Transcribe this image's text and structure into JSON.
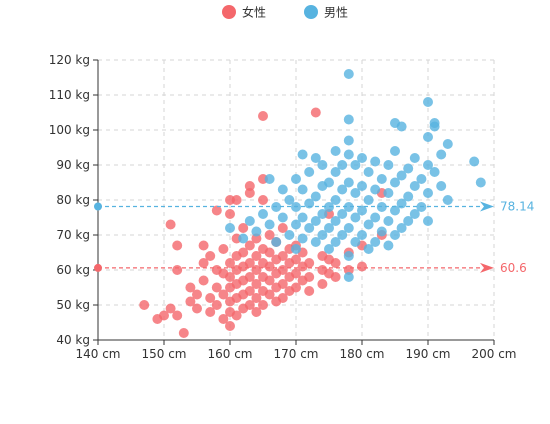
{
  "chart_data": {
    "type": "scatter",
    "title": "",
    "xlabel": "",
    "ylabel": "",
    "xlim": [
      140,
      200
    ],
    "ylim": [
      40,
      120
    ],
    "x_ticks": [
      140,
      150,
      160,
      170,
      180,
      190,
      200
    ],
    "x_tick_labels": [
      "140 cm",
      "150 cm",
      "160 cm",
      "170 cm",
      "180 cm",
      "190 cm",
      "200 cm"
    ],
    "y_ticks": [
      40,
      50,
      60,
      70,
      80,
      90,
      100,
      110,
      120
    ],
    "y_tick_labels": [
      "40 kg",
      "50 kg",
      "60 kg",
      "70 kg",
      "80 kg",
      "90 kg",
      "100 kg",
      "110 kg",
      "120 kg"
    ],
    "grid": "dashed",
    "legend_position": "top-center",
    "series": [
      {
        "name": "女性",
        "color": "#f4676b",
        "mean_line": {
          "value": 60.6,
          "label": "60.6"
        },
        "points": [
          [
            147,
            50
          ],
          [
            149,
            46
          ],
          [
            150,
            47
          ],
          [
            151,
            49
          ],
          [
            152,
            47
          ],
          [
            152,
            60
          ],
          [
            152,
            67
          ],
          [
            151,
            73
          ],
          [
            153,
            42
          ],
          [
            154,
            51
          ],
          [
            154,
            55
          ],
          [
            155,
            49
          ],
          [
            155,
            53
          ],
          [
            156,
            57
          ],
          [
            156,
            62
          ],
          [
            156,
            67
          ],
          [
            157,
            48
          ],
          [
            157,
            52
          ],
          [
            157,
            64
          ],
          [
            158,
            50
          ],
          [
            158,
            55
          ],
          [
            158,
            60
          ],
          [
            158,
            77
          ],
          [
            159,
            46
          ],
          [
            159,
            53
          ],
          [
            159,
            59
          ],
          [
            159,
            66
          ],
          [
            160,
            44
          ],
          [
            160,
            48
          ],
          [
            160,
            51
          ],
          [
            160,
            55
          ],
          [
            160,
            58
          ],
          [
            160,
            62
          ],
          [
            160,
            76
          ],
          [
            160,
            80
          ],
          [
            161,
            47
          ],
          [
            161,
            52
          ],
          [
            161,
            56
          ],
          [
            161,
            60
          ],
          [
            161,
            64
          ],
          [
            161,
            69
          ],
          [
            161,
            80
          ],
          [
            162,
            49
          ],
          [
            162,
            53
          ],
          [
            162,
            57
          ],
          [
            162,
            61
          ],
          [
            162,
            65
          ],
          [
            162,
            72
          ],
          [
            163,
            50
          ],
          [
            163,
            54
          ],
          [
            163,
            58
          ],
          [
            163,
            62
          ],
          [
            163,
            67
          ],
          [
            163,
            82
          ],
          [
            163,
            84
          ],
          [
            164,
            48
          ],
          [
            164,
            52
          ],
          [
            164,
            56
          ],
          [
            164,
            60
          ],
          [
            164,
            64
          ],
          [
            164,
            69
          ],
          [
            165,
            50
          ],
          [
            165,
            54
          ],
          [
            165,
            58
          ],
          [
            165,
            62
          ],
          [
            165,
            66
          ],
          [
            165,
            80
          ],
          [
            165,
            86
          ],
          [
            165,
            104
          ],
          [
            166,
            53
          ],
          [
            166,
            57
          ],
          [
            166,
            61
          ],
          [
            166,
            65
          ],
          [
            166,
            70
          ],
          [
            167,
            51
          ],
          [
            167,
            55
          ],
          [
            167,
            59
          ],
          [
            167,
            63
          ],
          [
            167,
            68
          ],
          [
            168,
            52
          ],
          [
            168,
            56
          ],
          [
            168,
            60
          ],
          [
            168,
            64
          ],
          [
            168,
            72
          ],
          [
            169,
            54
          ],
          [
            169,
            58
          ],
          [
            169,
            62
          ],
          [
            169,
            66
          ],
          [
            170,
            55
          ],
          [
            170,
            59
          ],
          [
            170,
            63
          ],
          [
            170,
            67
          ],
          [
            171,
            57
          ],
          [
            171,
            61
          ],
          [
            171,
            65
          ],
          [
            172,
            54
          ],
          [
            172,
            58
          ],
          [
            172,
            62
          ],
          [
            173,
            105
          ],
          [
            174,
            56
          ],
          [
            174,
            60
          ],
          [
            174,
            64
          ],
          [
            175,
            59
          ],
          [
            175,
            63
          ],
          [
            175,
            76
          ],
          [
            176,
            58
          ],
          [
            176,
            62
          ],
          [
            178,
            60
          ],
          [
            178,
            65
          ],
          [
            180,
            61
          ],
          [
            180,
            67
          ],
          [
            183,
            70
          ],
          [
            183,
            82
          ]
        ]
      },
      {
        "name": "男性",
        "color": "#57b3e0",
        "mean_line": {
          "value": 78.14,
          "label": "78.14"
        },
        "points": [
          [
            160,
            72
          ],
          [
            162,
            69
          ],
          [
            163,
            74
          ],
          [
            164,
            71
          ],
          [
            165,
            76
          ],
          [
            166,
            73
          ],
          [
            166,
            86
          ],
          [
            167,
            68
          ],
          [
            167,
            78
          ],
          [
            168,
            75
          ],
          [
            168,
            83
          ],
          [
            169,
            70
          ],
          [
            169,
            80
          ],
          [
            170,
            66
          ],
          [
            170,
            73
          ],
          [
            170,
            78
          ],
          [
            170,
            86
          ],
          [
            171,
            69
          ],
          [
            171,
            75
          ],
          [
            171,
            83
          ],
          [
            171,
            93
          ],
          [
            172,
            72
          ],
          [
            172,
            79
          ],
          [
            172,
            88
          ],
          [
            173,
            68
          ],
          [
            173,
            74
          ],
          [
            173,
            81
          ],
          [
            173,
            92
          ],
          [
            174,
            70
          ],
          [
            174,
            76
          ],
          [
            174,
            84
          ],
          [
            174,
            90
          ],
          [
            175,
            66
          ],
          [
            175,
            72
          ],
          [
            175,
            78
          ],
          [
            175,
            85
          ],
          [
            176,
            68
          ],
          [
            176,
            74
          ],
          [
            176,
            80
          ],
          [
            176,
            88
          ],
          [
            176,
            94
          ],
          [
            177,
            70
          ],
          [
            177,
            76
          ],
          [
            177,
            83
          ],
          [
            177,
            90
          ],
          [
            178,
            58
          ],
          [
            178,
            64
          ],
          [
            178,
            72
          ],
          [
            178,
            78
          ],
          [
            178,
            85
          ],
          [
            178,
            93
          ],
          [
            178,
            97
          ],
          [
            178,
            103
          ],
          [
            178,
            116
          ],
          [
            179,
            68
          ],
          [
            179,
            75
          ],
          [
            179,
            82
          ],
          [
            179,
            90
          ],
          [
            180,
            70
          ],
          [
            180,
            77
          ],
          [
            180,
            84
          ],
          [
            180,
            92
          ],
          [
            181,
            66
          ],
          [
            181,
            73
          ],
          [
            181,
            80
          ],
          [
            181,
            88
          ],
          [
            182,
            68
          ],
          [
            182,
            75
          ],
          [
            182,
            83
          ],
          [
            182,
            91
          ],
          [
            183,
            71
          ],
          [
            183,
            78
          ],
          [
            183,
            86
          ],
          [
            184,
            67
          ],
          [
            184,
            74
          ],
          [
            184,
            82
          ],
          [
            184,
            90
          ],
          [
            185,
            70
          ],
          [
            185,
            77
          ],
          [
            185,
            85
          ],
          [
            185,
            94
          ],
          [
            185,
            102
          ],
          [
            186,
            72
          ],
          [
            186,
            79
          ],
          [
            186,
            87
          ],
          [
            186,
            101
          ],
          [
            187,
            74
          ],
          [
            187,
            81
          ],
          [
            187,
            89
          ],
          [
            188,
            76
          ],
          [
            188,
            84
          ],
          [
            188,
            92
          ],
          [
            189,
            78
          ],
          [
            189,
            86
          ],
          [
            190,
            74
          ],
          [
            190,
            82
          ],
          [
            190,
            90
          ],
          [
            190,
            98
          ],
          [
            190,
            108
          ],
          [
            191,
            88
          ],
          [
            191,
            101
          ],
          [
            191,
            102
          ],
          [
            192,
            84
          ],
          [
            192,
            93
          ],
          [
            193,
            96
          ],
          [
            193,
            80
          ],
          [
            197,
            91
          ],
          [
            198,
            85
          ]
        ]
      }
    ]
  }
}
